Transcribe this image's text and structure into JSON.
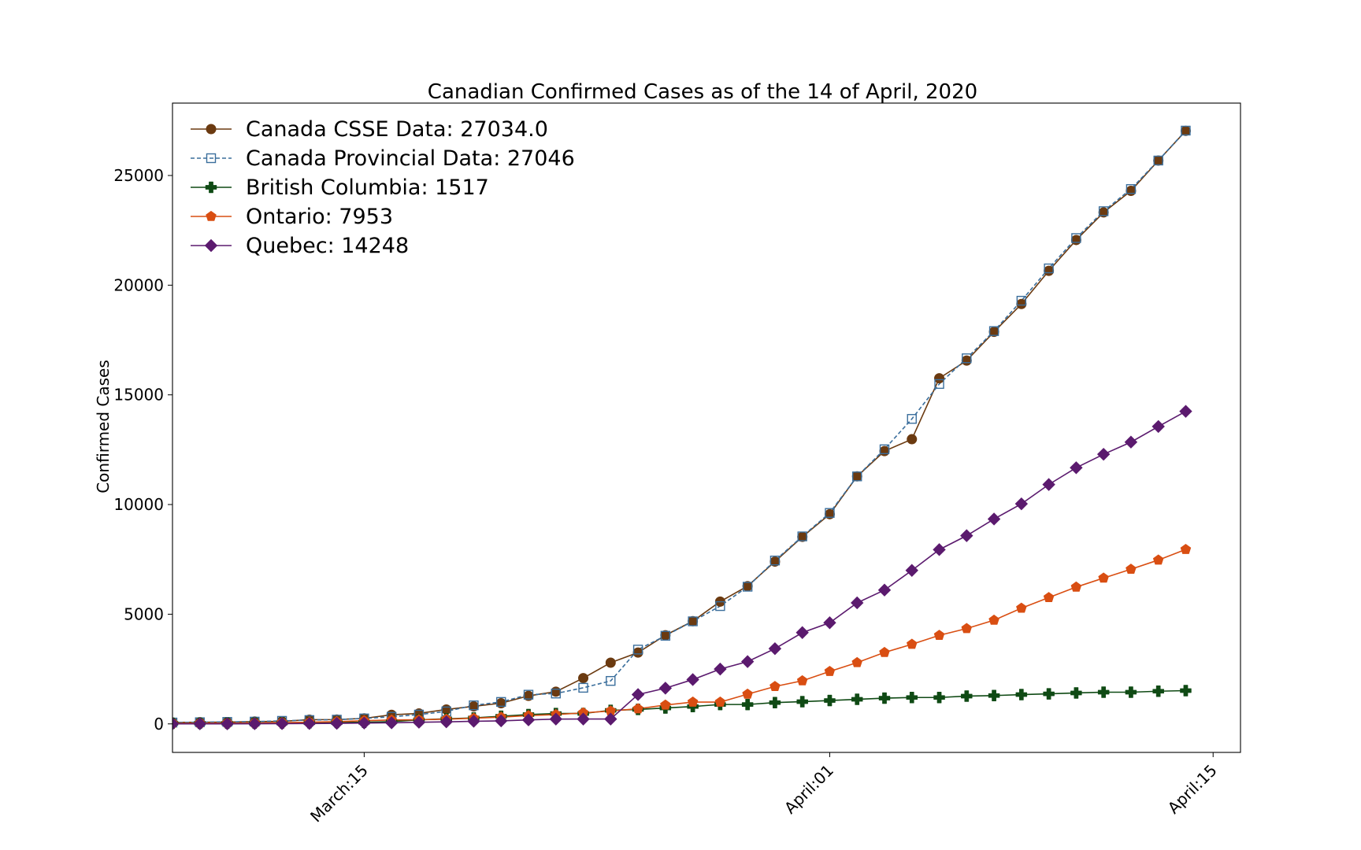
{
  "chart_data": {
    "type": "line",
    "title": "Canadian Confirmed Cases as of the 14 of April, 2020",
    "xlabel": "",
    "ylabel": "Confirmed Cases",
    "x": [
      "2020-03-08",
      "2020-03-09",
      "2020-03-10",
      "2020-03-11",
      "2020-03-12",
      "2020-03-13",
      "2020-03-14",
      "2020-03-15",
      "2020-03-16",
      "2020-03-17",
      "2020-03-18",
      "2020-03-19",
      "2020-03-20",
      "2020-03-21",
      "2020-03-22",
      "2020-03-23",
      "2020-03-24",
      "2020-03-25",
      "2020-03-26",
      "2020-03-27",
      "2020-03-28",
      "2020-03-29",
      "2020-03-30",
      "2020-03-31",
      "2020-04-01",
      "2020-04-02",
      "2020-04-03",
      "2020-04-04",
      "2020-04-05",
      "2020-04-06",
      "2020-04-07",
      "2020-04-08",
      "2020-04-09",
      "2020-04-10",
      "2020-04-11",
      "2020-04-12",
      "2020-04-13",
      "2020-04-14"
    ],
    "xlim": [
      "2020-03-08",
      "2020-04-16"
    ],
    "ylim": [
      -1300,
      28300
    ],
    "x_ticks": [
      {
        "date": "2020-03-15",
        "label": "March:15"
      },
      {
        "date": "2020-04-01",
        "label": "April:01"
      },
      {
        "date": "2020-04-15",
        "label": "April:15"
      }
    ],
    "y_ticks": [
      0,
      5000,
      10000,
      15000,
      20000,
      25000
    ],
    "y_tick_labels": [
      "0",
      "5000",
      "10000",
      "15000",
      "20000",
      "25000"
    ],
    "legend_position": "upper-left",
    "series": [
      {
        "name": "Canada CSSE Data: 27034.0",
        "color": "#6b3a10",
        "marker": "circle",
        "dashed": false,
        "start": "2020-03-08",
        "values": [
          64,
          77,
          79,
          108,
          117,
          193,
          198,
          252,
          415,
          478,
          657,
          800,
          943,
          1278,
          1469,
          2088,
          2790,
          3251,
          4042,
          4682,
          5576,
          6280,
          7398,
          8527,
          9560,
          11284,
          12437,
          12978,
          15756,
          16563,
          17872,
          19141,
          20654,
          22059,
          23316,
          24298,
          25680,
          27034
        ]
      },
      {
        "name": "Canada Provincial Data: 27046",
        "color": "#3a6e9c",
        "marker": "square-open",
        "dashed": true,
        "start": "2020-03-08",
        "values": [
          62,
          76,
          90,
          103,
          138,
          176,
          193,
          249,
          324,
          424,
          569,
          846,
          1001,
          1331,
          1384,
          1646,
          1959,
          3387,
          4018,
          4675,
          5371,
          6253,
          7448,
          8548,
          9617,
          11283,
          12519,
          13904,
          15496,
          16667,
          17908,
          19291,
          20765,
          22148,
          23372,
          24383,
          25682,
          27046
        ]
      },
      {
        "name": "British Columbia: 1517",
        "color": "#0f4a14",
        "marker": "plus",
        "dashed": false,
        "start": "2020-03-08",
        "values": [
          27,
          32,
          32,
          39,
          46,
          53,
          64,
          73,
          103,
          186,
          231,
          271,
          348,
          424,
          472,
          472,
          617,
          659,
          725,
          792,
          884,
          884,
          970,
          1013,
          1066,
          1121,
          1174,
          1203,
          1203,
          1266,
          1291,
          1336,
          1370,
          1410,
          1445,
          1445,
          1490,
          1517
        ]
      },
      {
        "name": "Ontario: 7953",
        "color": "#d94e12",
        "marker": "pentagon",
        "dashed": false,
        "start": "2020-03-08",
        "values": [
          28,
          34,
          36,
          42,
          59,
          79,
          103,
          145,
          177,
          189,
          214,
          258,
          308,
          377,
          425,
          503,
          588,
          688,
          858,
          993,
          993,
          1355,
          1706,
          1966,
          2392,
          2793,
          3255,
          3630,
          4038,
          4347,
          4726,
          5276,
          5759,
          6237,
          6648,
          7049,
          7470,
          7953
        ]
      },
      {
        "name": "Quebec: 14248",
        "color": "#5b1a6e",
        "marker": "diamond",
        "dashed": false,
        "start": "2020-03-08",
        "values": [
          3,
          4,
          4,
          7,
          13,
          17,
          24,
          39,
          50,
          74,
          94,
          121,
          139,
          181,
          219,
          221,
          221,
          1339,
          1629,
          2021,
          2498,
          2840,
          3430,
          4162,
          4611,
          5518,
          6101,
          6997,
          7944,
          8580,
          9340,
          10031,
          10912,
          11677,
          12292,
          12846,
          13557,
          14248
        ]
      }
    ]
  }
}
